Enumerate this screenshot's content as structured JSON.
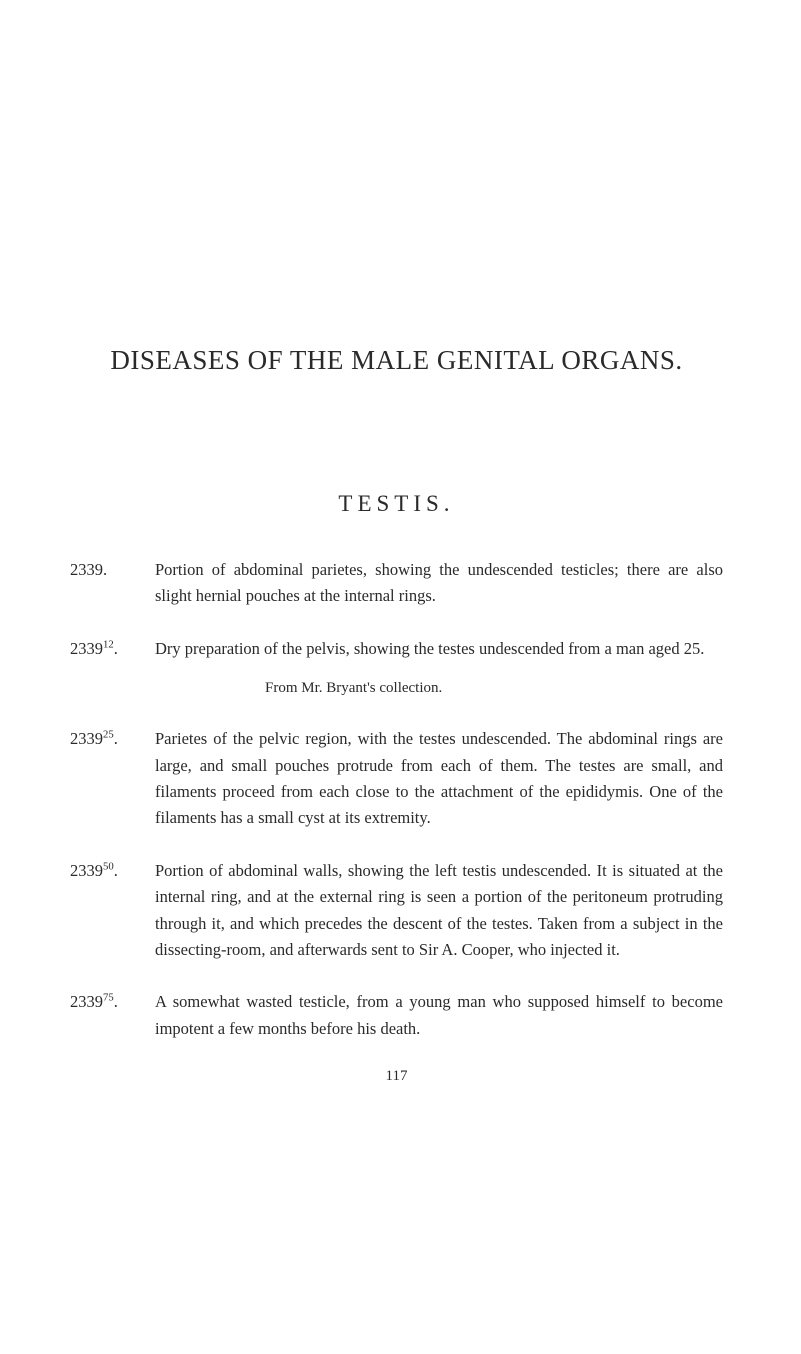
{
  "page": {
    "main_heading": "DISEASES OF THE MALE GENITAL ORGANS.",
    "section_heading": "TESTIS.",
    "page_number": "117",
    "entries": [
      {
        "number": "2339.",
        "super": "",
        "text": "Portion of abdominal parietes, showing the undescended testicles; there are also slight hernial pouches at the internal rings.",
        "credit": ""
      },
      {
        "number": "2339",
        "super": "12",
        "suffix": ".",
        "text": "Dry preparation of the pelvis, showing the testes undescended from a man aged 25.",
        "credit": "From Mr. Bryant's collection."
      },
      {
        "number": "2339",
        "super": "25",
        "suffix": ".",
        "text": "Parietes of the pelvic region, with the testes undescended. The abdominal rings are large, and small pouches protrude from each of them. The testes are small, and filaments proceed from each close to the attachment of the epididymis. One of the filaments has a small cyst at its extremity.",
        "credit": ""
      },
      {
        "number": "2339",
        "super": "50",
        "suffix": ".",
        "text": "Portion of abdominal walls, showing the left testis undescended. It is situated at the internal ring, and at the external ring is seen a portion of the peritoneum protruding through it, and which precedes the descent of the testes. Taken from a subject in the dissecting-room, and afterwards sent to Sir A. Cooper, who injected it.",
        "credit": ""
      },
      {
        "number": "2339",
        "super": "75",
        "suffix": ".",
        "text": "A somewhat wasted testicle, from a young man who supposed himself to become impotent a few months before his death.",
        "credit": ""
      }
    ]
  },
  "style": {
    "background_color": "#ffffff",
    "text_color": "#2a2a2a",
    "body_font_size": 16.5,
    "heading_font_size": 27,
    "section_font_size": 23,
    "credit_font_size": 15,
    "page_number_font_size": 15,
    "line_height": 1.6
  }
}
